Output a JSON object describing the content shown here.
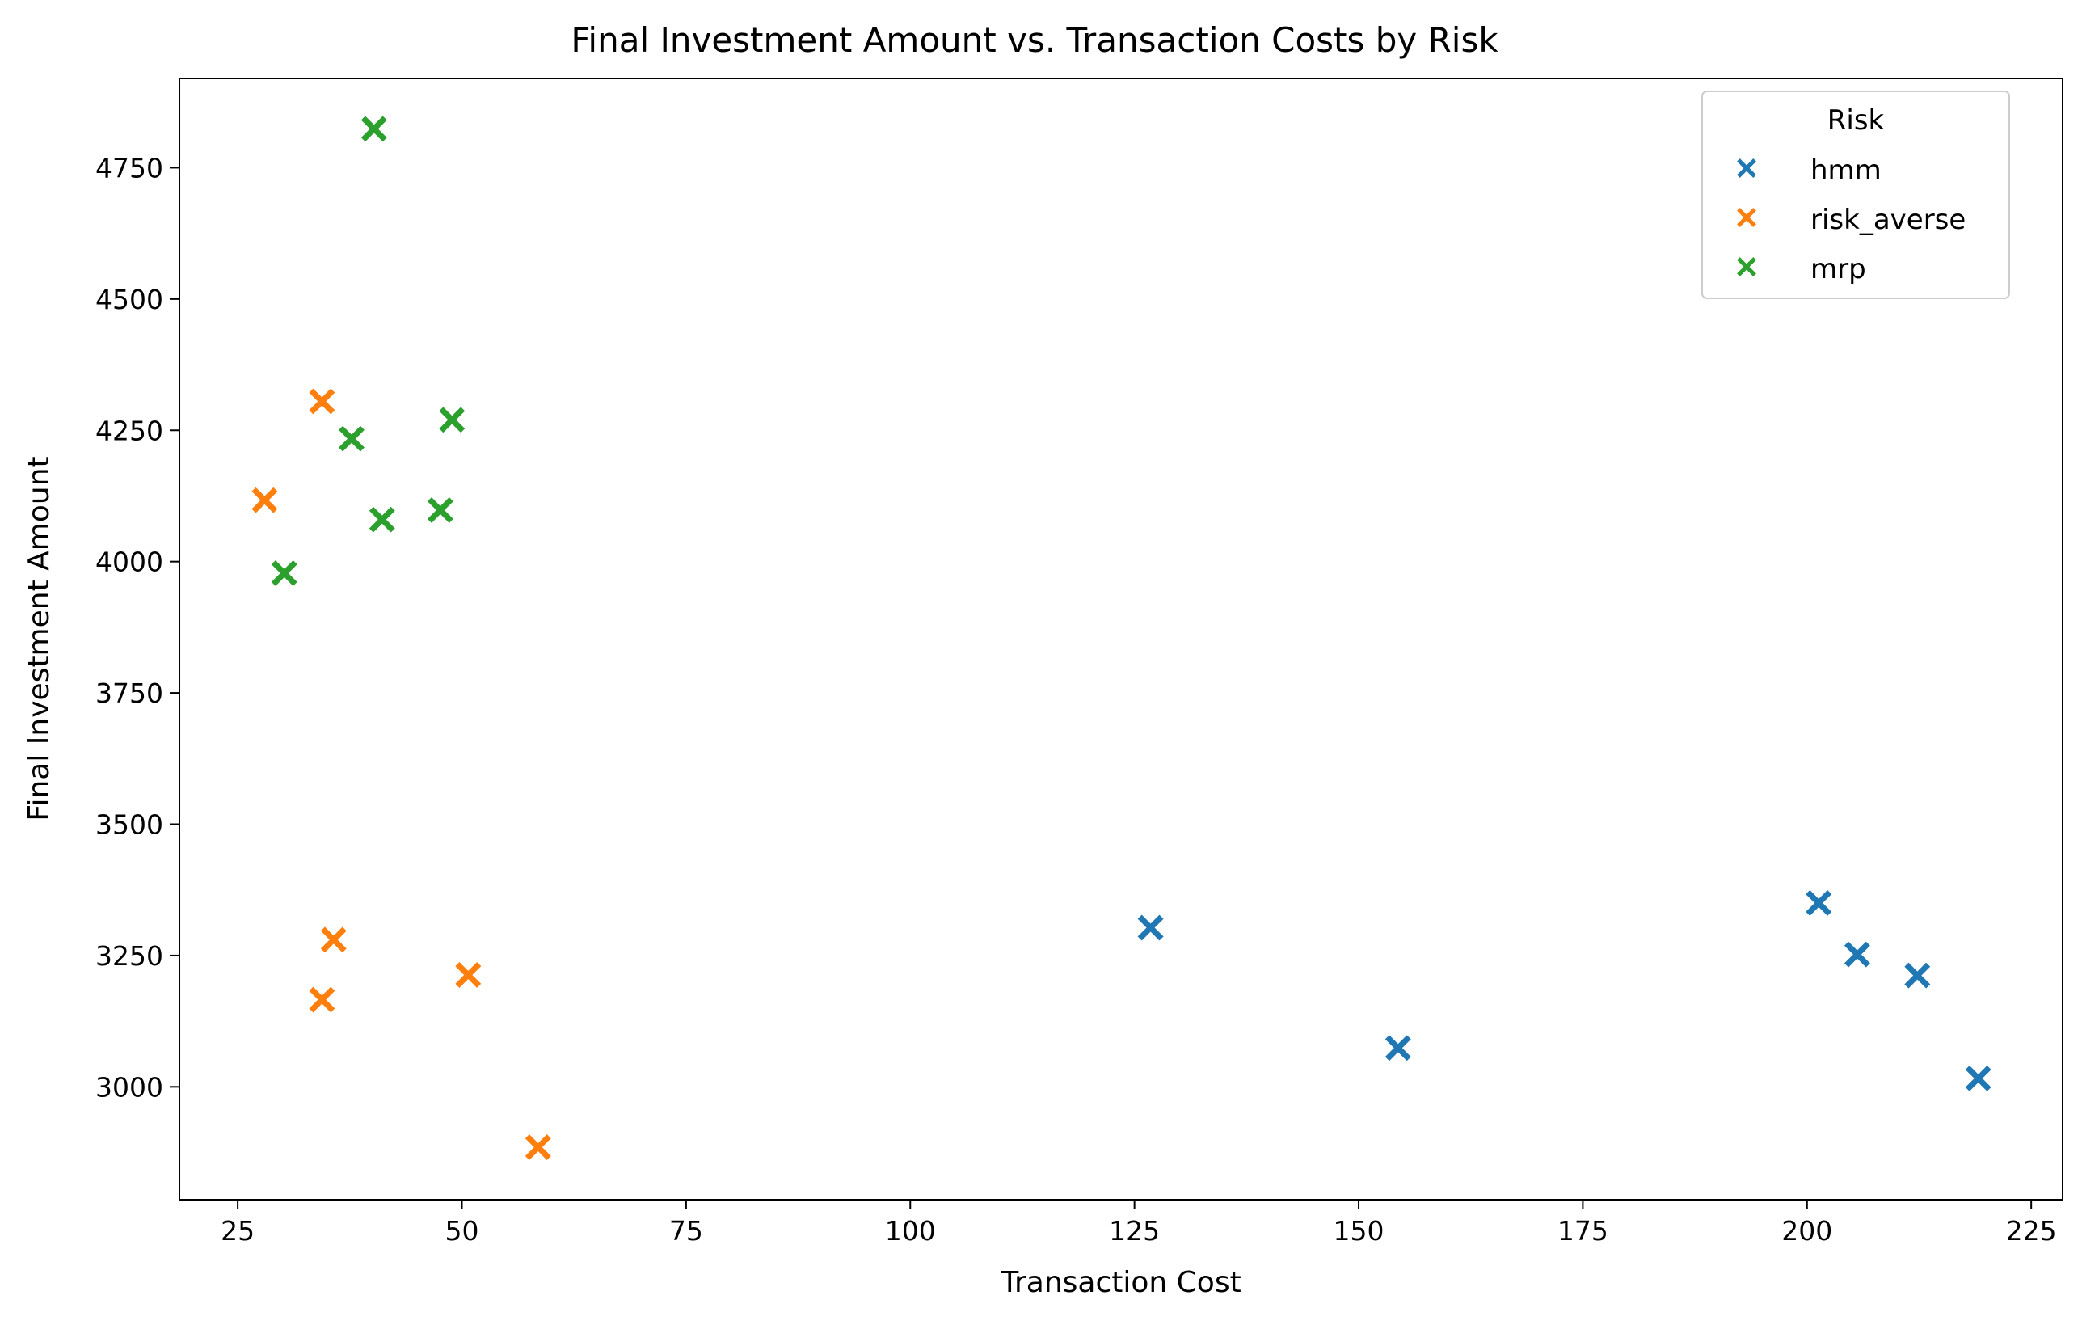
{
  "chart_data": {
    "type": "scatter",
    "title": "Final Investment Amount vs. Transaction Costs by Risk",
    "xlabel": "Transaction Cost",
    "ylabel": "Final Investment Amount",
    "xlim": [
      18.5,
      228.5
    ],
    "ylim": [
      2785,
      4920
    ],
    "x_ticks": [
      25,
      50,
      75,
      100,
      125,
      150,
      175,
      200,
      225
    ],
    "y_ticks": [
      3000,
      3250,
      3500,
      3750,
      4000,
      4250,
      4500,
      4750
    ],
    "grid": false,
    "marker": "X",
    "legend": {
      "title": "Risk",
      "placement": "top-right"
    },
    "series": [
      {
        "name": "hmm",
        "color": "#1f77b4",
        "points": [
          {
            "x": 126.8,
            "y": 3303
          },
          {
            "x": 154.4,
            "y": 3074
          },
          {
            "x": 201.3,
            "y": 3350
          },
          {
            "x": 205.6,
            "y": 3252
          },
          {
            "x": 212.3,
            "y": 3212
          },
          {
            "x": 219.1,
            "y": 3016
          }
        ]
      },
      {
        "name": "risk_averse",
        "color": "#ff7f0e",
        "points": [
          {
            "x": 34.4,
            "y": 4305
          },
          {
            "x": 28.0,
            "y": 4117
          },
          {
            "x": 35.7,
            "y": 3280
          },
          {
            "x": 34.4,
            "y": 3166
          },
          {
            "x": 50.7,
            "y": 3213
          },
          {
            "x": 58.5,
            "y": 2885
          }
        ]
      },
      {
        "name": "mrp",
        "color": "#2ca02c",
        "points": [
          {
            "x": 40.2,
            "y": 4824
          },
          {
            "x": 37.7,
            "y": 4234
          },
          {
            "x": 48.9,
            "y": 4270
          },
          {
            "x": 41.1,
            "y": 4080
          },
          {
            "x": 47.6,
            "y": 4098
          },
          {
            "x": 30.2,
            "y": 3978
          }
        ]
      }
    ]
  }
}
